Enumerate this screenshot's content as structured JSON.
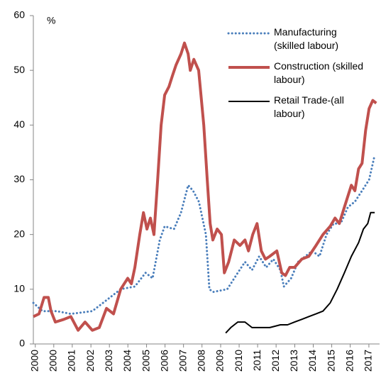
{
  "chart_data": {
    "type": "line",
    "ylabel": "%",
    "xlim": [
      1999.9,
      2017.7
    ],
    "ylim": [
      0,
      60
    ],
    "yticks": [
      0,
      10,
      20,
      30,
      40,
      50,
      60
    ],
    "xticks": [
      {
        "value": 2000.0,
        "label": "2000"
      },
      {
        "value": 2000.95,
        "label": "2000"
      },
      {
        "value": 2001.9,
        "label": "2001"
      },
      {
        "value": 2002.86,
        "label": "2002"
      },
      {
        "value": 2003.81,
        "label": "2003"
      },
      {
        "value": 2004.76,
        "label": "2004"
      },
      {
        "value": 2005.72,
        "label": "2005"
      },
      {
        "value": 2006.67,
        "label": "2006"
      },
      {
        "value": 2007.62,
        "label": "2007"
      },
      {
        "value": 2008.57,
        "label": "2008"
      },
      {
        "value": 2009.53,
        "label": "2009"
      },
      {
        "value": 2010.48,
        "label": "2010"
      },
      {
        "value": 2011.43,
        "label": "2011"
      },
      {
        "value": 2012.38,
        "label": "2012"
      },
      {
        "value": 2013.34,
        "label": "2013"
      },
      {
        "value": 2014.29,
        "label": "2014"
      },
      {
        "value": 2015.24,
        "label": "2015"
      },
      {
        "value": 2016.19,
        "label": "2016"
      },
      {
        "value": 2017.15,
        "label": "2017"
      }
    ],
    "grid": false,
    "series": [
      {
        "name": "Manufacturing (skilled labour)",
        "color": "#4a7ebb",
        "style": "dotted",
        "x": [
          1999.9,
          2000.37,
          2001.1,
          2001.83,
          2002.93,
          2003.66,
          2004.39,
          2005.12,
          2005.67,
          2006.03,
          2006.4,
          2006.65,
          2007.13,
          2007.49,
          2007.86,
          2008.11,
          2008.41,
          2008.77,
          2008.95,
          2009.14,
          2009.87,
          2010.41,
          2010.78,
          2011.14,
          2011.51,
          2011.87,
          2012.24,
          2012.6,
          2012.78,
          2013.15,
          2013.51,
          2013.88,
          2014.24,
          2014.61,
          2014.97,
          2015.34,
          2015.7,
          2016.07,
          2016.43,
          2016.8,
          2017.16,
          2017.45
        ],
        "values": [
          7.5,
          6,
          6,
          5.5,
          6,
          8,
          10,
          10.5,
          13,
          12,
          19,
          21.5,
          21,
          24,
          29,
          28,
          26,
          20,
          10,
          9.5,
          10,
          13,
          15,
          13.5,
          16,
          14,
          15.5,
          13.5,
          10.5,
          12,
          15,
          16,
          17,
          16,
          20,
          22,
          22,
          25,
          26,
          28,
          30,
          34.5
        ]
      },
      {
        "name": "Construction (skilled labour)",
        "color": "#c0504d",
        "style": "solid",
        "x": [
          1999.9,
          2000.19,
          2000.45,
          2000.67,
          2000.81,
          2001.03,
          2001.47,
          2001.83,
          2002.2,
          2002.56,
          2002.93,
          2003.29,
          2003.66,
          2004.02,
          2004.39,
          2004.75,
          2004.94,
          2005.12,
          2005.37,
          2005.56,
          2005.74,
          2005.92,
          2006.1,
          2006.29,
          2006.47,
          2006.65,
          2006.87,
          2007.05,
          2007.24,
          2007.49,
          2007.67,
          2007.86,
          2007.97,
          2008.15,
          2008.4,
          2008.66,
          2008.84,
          2008.99,
          2009.13,
          2009.35,
          2009.57,
          2009.72,
          2009.94,
          2010.23,
          2010.52,
          2010.78,
          2010.96,
          2011.18,
          2011.4,
          2011.62,
          2011.83,
          2012.05,
          2012.42,
          2012.67,
          2012.86,
          2013.08,
          2013.33,
          2013.7,
          2014.06,
          2014.43,
          2014.79,
          2015.16,
          2015.41,
          2015.63,
          2015.89,
          2016.25,
          2016.43,
          2016.62,
          2016.8,
          2016.98,
          2017.16,
          2017.35,
          2017.53
        ],
        "values": [
          5,
          5.5,
          8.5,
          8.5,
          6,
          4,
          4.5,
          5,
          2.5,
          4,
          2.5,
          3,
          6.5,
          5.5,
          10,
          12,
          11,
          14,
          20,
          24,
          21,
          23,
          20,
          30,
          40,
          45.5,
          47,
          49,
          51,
          53,
          55,
          53,
          50,
          52,
          50,
          40,
          30,
          22,
          19,
          21,
          20,
          13,
          15,
          19,
          18,
          19,
          17,
          20,
          22,
          17,
          15.5,
          16,
          17,
          13,
          12.5,
          14,
          14,
          15.5,
          16,
          18,
          20,
          21.5,
          23,
          22,
          25,
          29,
          28,
          32,
          33,
          39,
          43,
          44.5,
          44
        ]
      },
      {
        "name": "Retail Trade-(all labour)",
        "color": "#000000",
        "style": "solid",
        "x": [
          2009.79,
          2010.05,
          2010.41,
          2010.78,
          2011.14,
          2011.51,
          2012.05,
          2012.6,
          2012.97,
          2013.33,
          2013.7,
          2014.06,
          2014.43,
          2014.79,
          2015.16,
          2015.52,
          2015.89,
          2016.25,
          2016.62,
          2016.87,
          2017.09,
          2017.24,
          2017.45
        ],
        "values": [
          2,
          3,
          4,
          4,
          3,
          3,
          3,
          3.5,
          3.5,
          4,
          4.5,
          5,
          5.5,
          6,
          7.5,
          10,
          13,
          16,
          18.5,
          21,
          22,
          24,
          24
        ]
      }
    ]
  }
}
